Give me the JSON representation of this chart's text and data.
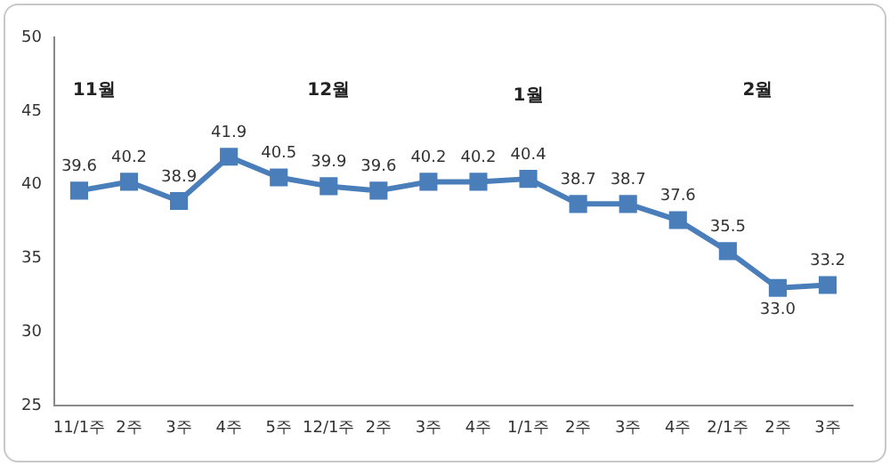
{
  "chart_data": {
    "type": "line",
    "categories": [
      "11/1주",
      "2주",
      "3주",
      "4주",
      "5주",
      "12/1주",
      "2주",
      "3주",
      "4주",
      "1/1주",
      "2주",
      "3주",
      "4주",
      "2/1주",
      "2주",
      "3주"
    ],
    "series": [
      {
        "color": "#4a7ebb",
        "values": [
          39.6,
          40.2,
          38.9,
          41.9,
          40.5,
          39.9,
          39.6,
          40.2,
          40.2,
          40.4,
          38.7,
          38.7,
          37.6,
          35.5,
          33.0,
          33.2
        ],
        "value_labels": [
          "39.6",
          "40.2",
          "38.9",
          "41.9",
          "40.5",
          "39.9",
          "39.6",
          "40.2",
          "40.2",
          "40.4",
          "38.7",
          "38.7",
          "37.6",
          "35.5",
          "33.0",
          "33.2"
        ]
      }
    ],
    "ylim": [
      25,
      50
    ],
    "yticks": [
      25,
      30,
      35,
      40,
      45,
      50
    ],
    "grid": false,
    "legend": false,
    "marker": "square",
    "line_style": "solid",
    "annotations": [
      "11월",
      "12월",
      "1월",
      "2월"
    ]
  }
}
